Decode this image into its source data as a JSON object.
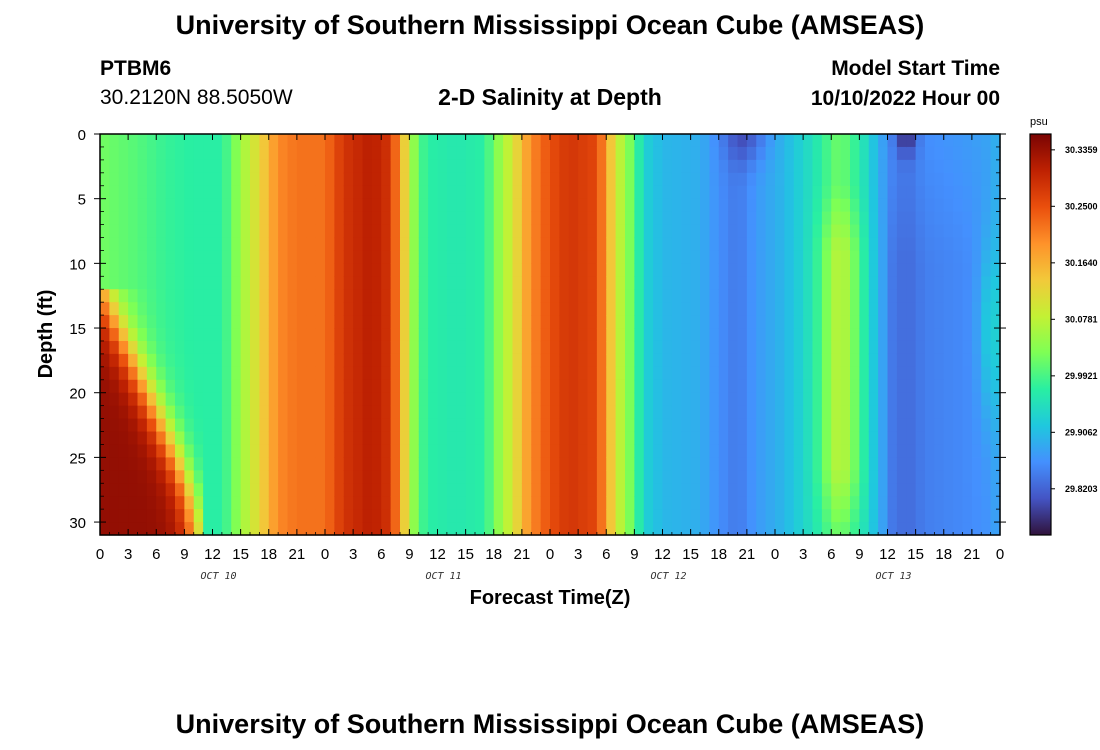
{
  "header": {
    "title": "University of Southern Mississippi Ocean Cube (AMSEAS)",
    "station": "PTBM6",
    "coords": "30.2120N  88.5050W",
    "plot_title": "2-D Salinity at Depth",
    "model_start_label": "Model Start Time",
    "model_start_value": "10/10/2022 Hour 00"
  },
  "footer": {
    "title": "University of Southern Mississippi Ocean Cube (AMSEAS)"
  },
  "colors": {
    "colormap": [
      "#30123b",
      "#4454c4",
      "#4490fe",
      "#1fc8de",
      "#29efa2",
      "#7eff55",
      "#c3f134",
      "#f2c93a",
      "#fe922a",
      "#ea4f0d",
      "#be2102",
      "#7a0403"
    ]
  },
  "chart_data": {
    "type": "heatmap",
    "title": "2-D Salinity at Depth",
    "xlabel": "Forecast Time(Z)",
    "ylabel": "Depth (ft)",
    "x_tick_labels": [
      "0",
      "3",
      "6",
      "9",
      "12",
      "15",
      "18",
      "21",
      "0",
      "3",
      "6",
      "9",
      "12",
      "15",
      "18",
      "21",
      "0",
      "3",
      "6",
      "9",
      "12",
      "15",
      "18",
      "21",
      "0",
      "3",
      "6",
      "9",
      "12",
      "15",
      "18",
      "21",
      "0"
    ],
    "x_range_hours": [
      0,
      96
    ],
    "y_ticks": [
      0,
      5,
      10,
      15,
      20,
      25,
      30
    ],
    "y_range_ft": [
      0,
      31
    ],
    "y_inverted": true,
    "date_labels": [
      {
        "label": "OCT 10",
        "hour": 12
      },
      {
        "label": "OCT 11",
        "hour": 36
      },
      {
        "label": "OCT 12",
        "hour": 60
      },
      {
        "label": "OCT 13",
        "hour": 84
      }
    ],
    "colorbar": {
      "unit": "psu",
      "vmin": 29.75,
      "vmax": 30.36,
      "labels": [
        "30.3359",
        "30.2500",
        "30.1640",
        "30.0781",
        "29.9921",
        "29.9062",
        "29.8203"
      ]
    },
    "surface_salinity_by_hour": [
      [
        0,
        30.02
      ],
      [
        4,
        30.0
      ],
      [
        7,
        29.98
      ],
      [
        10,
        29.97
      ],
      [
        13,
        29.97
      ],
      [
        15,
        30.05
      ],
      [
        17,
        30.12
      ],
      [
        19,
        30.2
      ],
      [
        21,
        30.22
      ],
      [
        24,
        30.22
      ],
      [
        26,
        30.28
      ],
      [
        29,
        30.31
      ],
      [
        31,
        30.28
      ],
      [
        33,
        30.08
      ],
      [
        34,
        30.0
      ],
      [
        35,
        29.97
      ],
      [
        38,
        29.96
      ],
      [
        41,
        29.97
      ],
      [
        42,
        30.02
      ],
      [
        44,
        30.1
      ],
      [
        46,
        30.2
      ],
      [
        48,
        30.25
      ],
      [
        50,
        30.28
      ],
      [
        53,
        30.26
      ],
      [
        55,
        30.1
      ],
      [
        57,
        30.0
      ],
      [
        58,
        29.93
      ],
      [
        60,
        29.9
      ],
      [
        64,
        29.89
      ],
      [
        66,
        29.86
      ],
      [
        68,
        29.84
      ],
      [
        70,
        29.87
      ],
      [
        73,
        29.9
      ],
      [
        76,
        29.95
      ],
      [
        78,
        30.0
      ],
      [
        79,
        30.02
      ],
      [
        80,
        29.99
      ],
      [
        81,
        29.97
      ],
      [
        82,
        29.93
      ],
      [
        84,
        29.86
      ],
      [
        86,
        29.84
      ],
      [
        88,
        29.86
      ],
      [
        92,
        29.87
      ],
      [
        95,
        29.88
      ],
      [
        96,
        29.9
      ]
    ],
    "bottom_feature": "high salinity (~30.34 psu) below 15 ft during hours 0-9, tapering toward the surface"
  }
}
